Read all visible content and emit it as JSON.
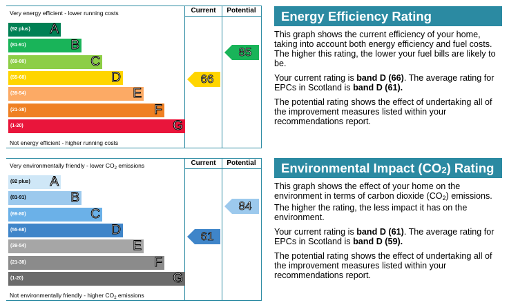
{
  "colors": {
    "accent": "#2b8aa2",
    "energy_bands": [
      "#008054",
      "#19b459",
      "#8dce46",
      "#ffd500",
      "#fcaa65",
      "#ef8023",
      "#e9153b"
    ],
    "environment_bands": [
      "#cfe7f7",
      "#9cc9ed",
      "#6bb1e8",
      "#3f85c9",
      "#a6a6a6",
      "#8b8b8b",
      "#6b6b6b"
    ]
  },
  "energy": {
    "top_label": "Very energy efficient - lower running costs",
    "bottom_label": "Not energy efficient - higher running costs",
    "current_header": "Current",
    "potential_header": "Potential"
  },
  "environment": {
    "top_label_prefix": "Very environmentally friendly - lower CO",
    "top_label_sub": "2",
    "top_label_suffix": " emissions",
    "bottom_label_prefix": "Not environmentally friendly - higher CO",
    "bottom_label_sub": "2",
    "bottom_label_suffix": " emissions",
    "current_header": "Current",
    "potential_header": "Potential"
  },
  "chart_data": [
    {
      "type": "bar",
      "id": "energy",
      "bands": [
        {
          "letter": "A",
          "range": "(92 plus)"
        },
        {
          "letter": "B",
          "range": "(81-91)"
        },
        {
          "letter": "C",
          "range": "(69-80)"
        },
        {
          "letter": "D",
          "range": "(55-68)"
        },
        {
          "letter": "E",
          "range": "(39-54)"
        },
        {
          "letter": "F",
          "range": "(21-38)"
        },
        {
          "letter": "G",
          "range": "(1-20)"
        }
      ],
      "current": {
        "value": 66,
        "band": "D",
        "color": "#ffd500"
      },
      "potential": {
        "value": 85,
        "band": "B",
        "color": "#19b459"
      }
    },
    {
      "type": "bar",
      "id": "environment",
      "bands": [
        {
          "letter": "A",
          "range": "(92 plus)"
        },
        {
          "letter": "B",
          "range": "(81-91)"
        },
        {
          "letter": "C",
          "range": "(69-80)"
        },
        {
          "letter": "D",
          "range": "(55-68)"
        },
        {
          "letter": "E",
          "range": "(39-54)"
        },
        {
          "letter": "F",
          "range": "(21-38)"
        },
        {
          "letter": "G",
          "range": "(1-20)"
        }
      ],
      "current": {
        "value": 61,
        "band": "D",
        "color": "#3f85c9"
      },
      "potential": {
        "value": 84,
        "band": "B",
        "color": "#9cc9ed"
      }
    }
  ],
  "info_energy": {
    "title": "Energy Efficiency Rating",
    "p1": "This graph shows the current efficiency of your home, taking into account both energy efficiency and fuel costs. The higher this rating, the lower your fuel bills are likely to be.",
    "p2_pre": "Your current rating is ",
    "p2_bold1": "band D (66)",
    "p2_mid": ". The average rating for EPCs in Scotland is ",
    "p2_bold2": "band D (61).",
    "p3": "The potential rating shows the effect of undertaking all of the improvement measures listed within your recommendations report."
  },
  "info_env": {
    "title_pre": "Environmental Impact (CO",
    "title_sub": "2",
    "title_post": ") Rating",
    "p1_pre": "This graph shows the effect of your home on the environment in terms of carbon dioxide (CO",
    "p1_sub": "2",
    "p1_post": ") emissions. The higher the rating, the less impact it has on the environment.",
    "p2_pre": "Your current rating is ",
    "p2_bold1": "band D (61)",
    "p2_mid": ". The average rating for EPCs in Scotland is ",
    "p2_bold2": "band D (59).",
    "p3": "The potential rating shows the effect of undertaking all of the improvement measures listed within your recommendations report."
  }
}
